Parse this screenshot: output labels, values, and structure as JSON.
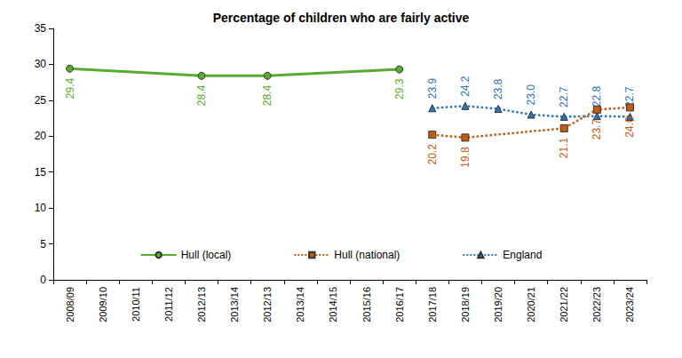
{
  "chart_data": {
    "type": "line",
    "title": "Percentage of children who are fairly active",
    "categories": [
      "2008/09",
      "2009/10",
      "2010/11",
      "2011/12",
      "2012/13",
      "2013/14",
      "2012/13",
      "2013/14",
      "2014/15",
      "2015/16",
      "2016/17",
      "2017/18",
      "2018/19",
      "2019/20",
      "2020/21",
      "2021/22",
      "2022/23",
      "2023/24"
    ],
    "series": [
      {
        "name": "Hull (local)",
        "color": "#5aac2e",
        "marker": "circle",
        "line_style": "solid",
        "values": [
          29.4,
          null,
          null,
          null,
          28.4,
          null,
          28.4,
          null,
          null,
          null,
          29.3,
          null,
          null,
          null,
          null,
          null,
          null,
          null
        ]
      },
      {
        "name": "Hull (national)",
        "color": "#c55a11",
        "marker": "square",
        "line_style": "dotted",
        "values": [
          null,
          null,
          null,
          null,
          null,
          null,
          null,
          null,
          null,
          null,
          null,
          20.2,
          19.8,
          null,
          null,
          21.1,
          23.7,
          24.0
        ],
        "value_labels": [
          null,
          null,
          null,
          null,
          null,
          null,
          null,
          null,
          null,
          null,
          null,
          "20.2",
          "19.8",
          null,
          null,
          "21.1",
          "23.7",
          "24.0"
        ]
      },
      {
        "name": "England",
        "color": "#2e75b6",
        "marker": "triangle",
        "line_style": "dotted",
        "values": [
          null,
          null,
          null,
          null,
          null,
          null,
          null,
          null,
          null,
          null,
          null,
          23.9,
          24.2,
          23.8,
          23.0,
          22.7,
          22.8,
          22.7
        ],
        "value_labels": [
          null,
          null,
          null,
          null,
          null,
          null,
          null,
          null,
          null,
          null,
          null,
          "23.9",
          "24.2",
          "23.8",
          "23.0",
          "22.7",
          "22.8",
          "22.7"
        ]
      }
    ],
    "ylim": [
      0,
      35
    ],
    "yticks": [
      0,
      5,
      10,
      15,
      20,
      25,
      30,
      35
    ],
    "grid": false,
    "data_labels": true,
    "legend": "bottom"
  }
}
